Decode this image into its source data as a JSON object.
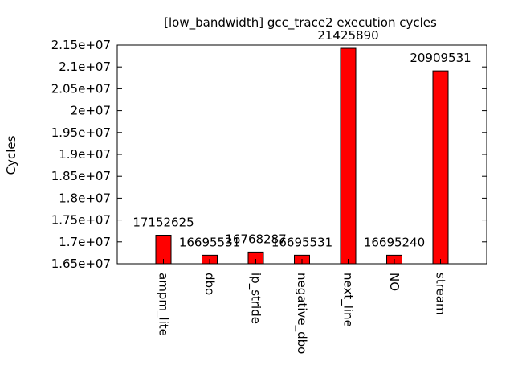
{
  "chart_data": {
    "type": "bar",
    "title": "[low_bandwidth] gcc_trace2 execution cycles",
    "xlabel": "",
    "ylabel": "Cycles",
    "categories": [
      "ampm_lite",
      "dbo",
      "ip_stride",
      "negative_dbo",
      "next_line",
      "NO",
      "stream"
    ],
    "values": [
      17152625,
      16695531,
      16768287,
      16695531,
      21425890,
      16695240,
      20909531
    ],
    "value_labels": [
      "17152625",
      "16695531",
      "16768287",
      "16695531",
      "21425890",
      "16695240",
      "20909531"
    ],
    "ylim": [
      16500000,
      21500000
    ],
    "yticks": [
      16500000,
      17000000,
      17500000,
      18000000,
      18500000,
      19000000,
      19500000,
      20000000,
      20500000,
      21000000,
      21500000
    ],
    "ytick_labels": [
      "1.65e+07",
      "1.7e+07",
      "1.75e+07",
      "1.8e+07",
      "1.85e+07",
      "1.9e+07",
      "1.95e+07",
      "2e+07",
      "2.05e+07",
      "2.1e+07",
      "2.15e+07"
    ],
    "bar_color": "#ff0000",
    "grid": false,
    "legend": "none"
  }
}
